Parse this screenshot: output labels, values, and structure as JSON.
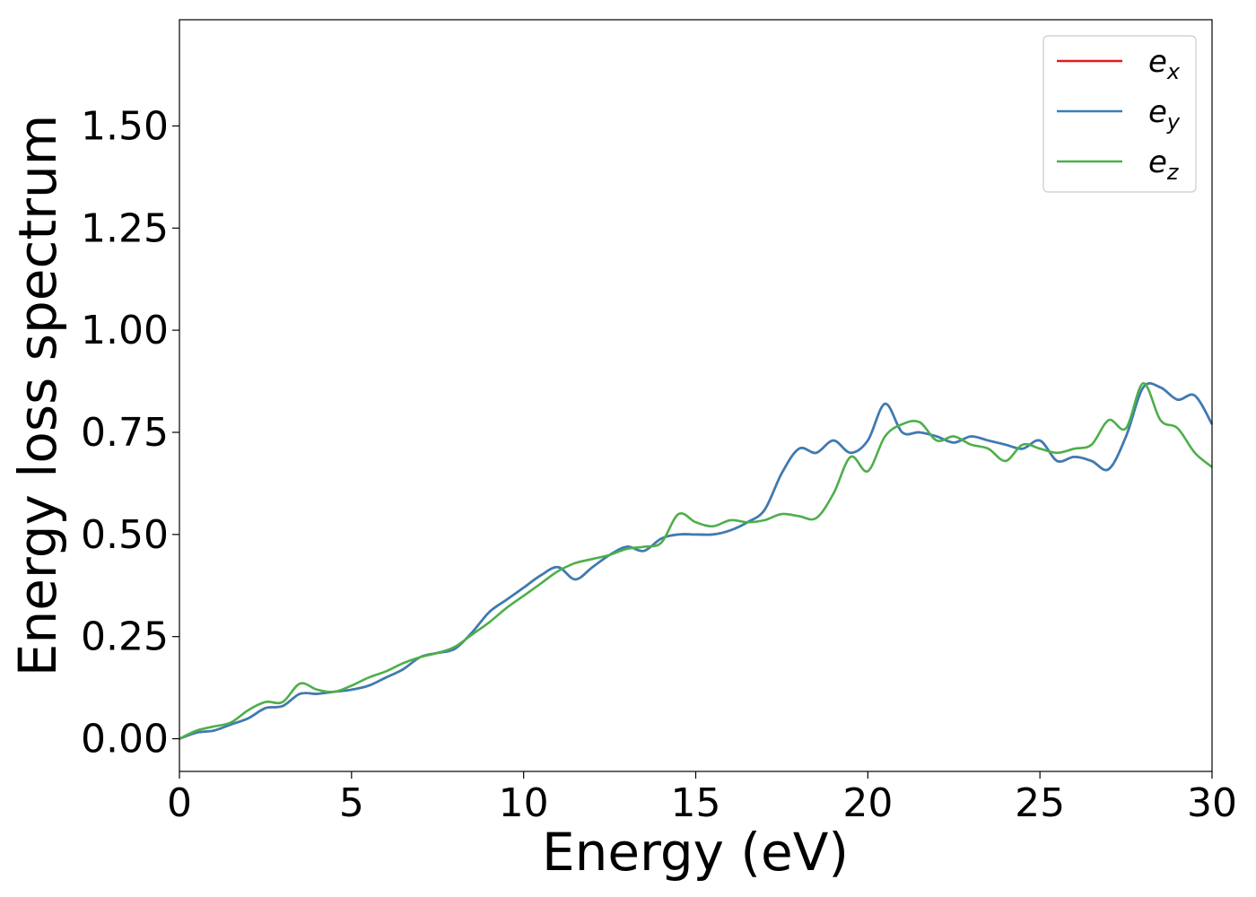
{
  "chart_data": {
    "type": "line",
    "xlabel": "Energy (eV)",
    "ylabel": "Energy loss spectrum",
    "xlim": [
      0,
      30
    ],
    "ylim": [
      -0.08,
      1.76
    ],
    "xticks": [
      0,
      5,
      10,
      15,
      20,
      25,
      30
    ],
    "xtick_labels": [
      "0",
      "5",
      "10",
      "15",
      "20",
      "25",
      "30"
    ],
    "yticks": [
      0,
      0.25,
      0.5,
      0.75,
      1.0,
      1.25,
      1.5
    ],
    "ytick_labels": [
      "0.00",
      "0.25",
      "0.50",
      "0.75",
      "1.00",
      "1.25",
      "1.50"
    ],
    "grid": false,
    "legend_position": "top-right",
    "x": [
      0,
      0.5,
      1,
      1.5,
      2,
      2.5,
      3,
      3.5,
      4,
      4.5,
      5,
      5.5,
      6,
      6.5,
      7,
      7.5,
      8,
      8.5,
      9,
      9.5,
      10,
      10.5,
      11,
      11.5,
      12,
      12.5,
      13,
      13.5,
      14,
      14.5,
      15,
      15.5,
      16,
      16.5,
      17,
      17.5,
      18,
      18.5,
      19,
      19.5,
      20,
      20.5,
      21,
      21.5,
      22,
      22.5,
      23,
      23.5,
      24,
      24.5,
      25,
      25.5,
      26,
      26.5,
      27,
      27.5,
      28,
      28.5,
      29,
      29.5,
      30
    ],
    "series": [
      {
        "name": "e",
        "subscript": "x",
        "color": "#e41a1c",
        "values": [
          0.0,
          0.015,
          0.02,
          0.035,
          0.05,
          0.075,
          0.08,
          0.11,
          0.11,
          0.115,
          0.12,
          0.13,
          0.15,
          0.17,
          0.2,
          0.21,
          0.22,
          0.26,
          0.31,
          0.34,
          0.37,
          0.4,
          0.42,
          0.39,
          0.42,
          0.45,
          0.47,
          0.46,
          0.49,
          0.5,
          0.5,
          0.5,
          0.51,
          0.53,
          0.56,
          0.65,
          0.71,
          0.7,
          0.73,
          0.7,
          0.73,
          0.82,
          0.75,
          0.75,
          0.74,
          0.725,
          0.74,
          0.73,
          0.72,
          0.71,
          0.73,
          0.68,
          0.69,
          0.68,
          0.66,
          0.74,
          0.86,
          0.86,
          0.83,
          0.84,
          0.77
        ]
      },
      {
        "name": "e",
        "subscript": "y",
        "color": "#377eb8",
        "values": [
          0.0,
          0.015,
          0.02,
          0.035,
          0.05,
          0.075,
          0.08,
          0.11,
          0.11,
          0.115,
          0.12,
          0.13,
          0.15,
          0.17,
          0.2,
          0.21,
          0.22,
          0.26,
          0.31,
          0.34,
          0.37,
          0.4,
          0.42,
          0.39,
          0.42,
          0.45,
          0.47,
          0.46,
          0.49,
          0.5,
          0.5,
          0.5,
          0.51,
          0.53,
          0.56,
          0.65,
          0.71,
          0.7,
          0.73,
          0.7,
          0.73,
          0.82,
          0.75,
          0.75,
          0.74,
          0.725,
          0.74,
          0.73,
          0.72,
          0.71,
          0.73,
          0.68,
          0.69,
          0.68,
          0.66,
          0.74,
          0.86,
          0.86,
          0.83,
          0.84,
          0.77
        ]
      },
      {
        "name": "e",
        "subscript": "z",
        "color": "#4daf4a",
        "values": [
          0.0,
          0.02,
          0.03,
          0.04,
          0.07,
          0.09,
          0.09,
          0.135,
          0.12,
          0.115,
          0.13,
          0.15,
          0.165,
          0.185,
          0.2,
          0.21,
          0.225,
          0.255,
          0.285,
          0.32,
          0.35,
          0.38,
          0.41,
          0.43,
          0.44,
          0.45,
          0.465,
          0.47,
          0.48,
          0.55,
          0.53,
          0.52,
          0.535,
          0.53,
          0.535,
          0.55,
          0.545,
          0.54,
          0.6,
          0.69,
          0.655,
          0.74,
          0.77,
          0.775,
          0.73,
          0.74,
          0.72,
          0.71,
          0.68,
          0.72,
          0.71,
          0.7,
          0.71,
          0.72,
          0.78,
          0.76,
          0.87,
          0.78,
          0.76,
          0.7,
          0.665
        ]
      }
    ]
  }
}
